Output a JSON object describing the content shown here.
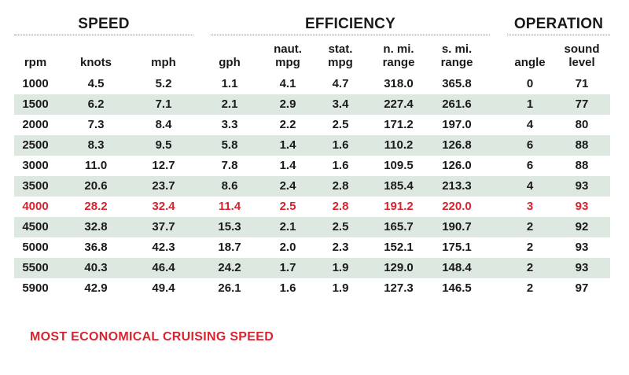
{
  "chart_data": {
    "type": "table",
    "groups": [
      {
        "title": "SPEED",
        "columns": [
          0,
          1,
          2
        ]
      },
      {
        "title": "EFFICIENCY",
        "columns": [
          3,
          4,
          5,
          6,
          7
        ]
      },
      {
        "title": "OPERATION",
        "columns": [
          8,
          9
        ]
      }
    ],
    "columns": [
      {
        "lines": [
          "rpm"
        ]
      },
      {
        "lines": [
          "knots"
        ]
      },
      {
        "lines": [
          "mph"
        ]
      },
      {
        "lines": [
          "gph"
        ]
      },
      {
        "lines": [
          "naut.",
          "mpg"
        ]
      },
      {
        "lines": [
          "stat.",
          "mpg"
        ]
      },
      {
        "lines": [
          "n. mi.",
          "range"
        ]
      },
      {
        "lines": [
          "s. mi.",
          "range"
        ]
      },
      {
        "lines": [
          "angle"
        ]
      },
      {
        "lines": [
          "sound",
          "level"
        ]
      }
    ],
    "rows": [
      [
        "1000",
        "4.5",
        "5.2",
        "1.1",
        "4.1",
        "4.7",
        "318.0",
        "365.8",
        "0",
        "71"
      ],
      [
        "1500",
        "6.2",
        "7.1",
        "2.1",
        "2.9",
        "3.4",
        "227.4",
        "261.6",
        "1",
        "77"
      ],
      [
        "2000",
        "7.3",
        "8.4",
        "3.3",
        "2.2",
        "2.5",
        "171.2",
        "197.0",
        "4",
        "80"
      ],
      [
        "2500",
        "8.3",
        "9.5",
        "5.8",
        "1.4",
        "1.6",
        "110.2",
        "126.8",
        "6",
        "88"
      ],
      [
        "3000",
        "11.0",
        "12.7",
        "7.8",
        "1.4",
        "1.6",
        "109.5",
        "126.0",
        "6",
        "88"
      ],
      [
        "3500",
        "20.6",
        "23.7",
        "8.6",
        "2.4",
        "2.8",
        "185.4",
        "213.3",
        "4",
        "93"
      ],
      [
        "4000",
        "28.2",
        "32.4",
        "11.4",
        "2.5",
        "2.8",
        "191.2",
        "220.0",
        "3",
        "93"
      ],
      [
        "4500",
        "32.8",
        "37.7",
        "15.3",
        "2.1",
        "2.5",
        "165.7",
        "190.7",
        "2",
        "92"
      ],
      [
        "5000",
        "36.8",
        "42.3",
        "18.7",
        "2.0",
        "2.3",
        "152.1",
        "175.1",
        "2",
        "93"
      ],
      [
        "5500",
        "40.3",
        "46.4",
        "24.2",
        "1.7",
        "1.9",
        "129.0",
        "148.4",
        "2",
        "93"
      ],
      [
        "5900",
        "42.9",
        "49.4",
        "26.1",
        "1.6",
        "1.9",
        "127.3",
        "146.5",
        "2",
        "97"
      ]
    ],
    "highlight_row": 6,
    "highlight_color": "#d9232e",
    "stripe_color": "#dde9e0",
    "note": "MOST ECONOMICAL CRUISING SPEED"
  }
}
